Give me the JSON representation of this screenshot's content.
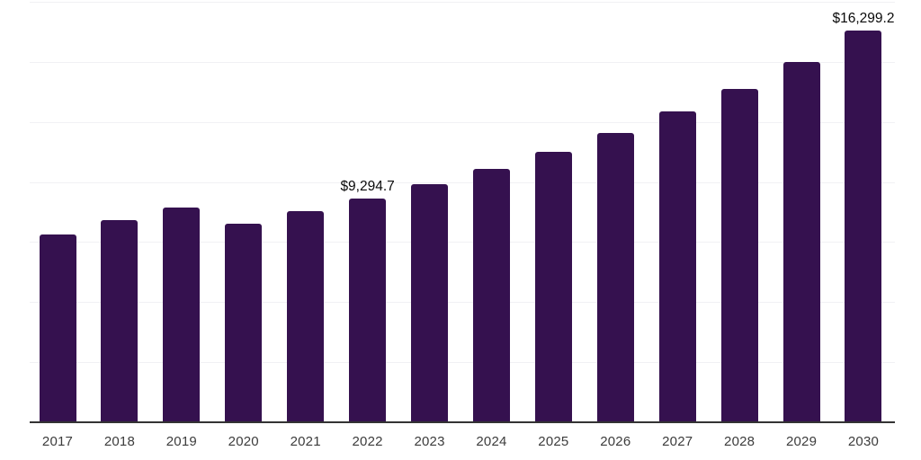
{
  "chart_data": {
    "type": "bar",
    "title": "",
    "xlabel": "",
    "ylabel": "",
    "categories": [
      "2017",
      "2018",
      "2019",
      "2020",
      "2021",
      "2022",
      "2023",
      "2024",
      "2025",
      "2026",
      "2027",
      "2028",
      "2029",
      "2030"
    ],
    "values": [
      7830,
      8420,
      8950,
      8270,
      8790,
      9294.7,
      9910,
      10560,
      11250,
      12030,
      12950,
      13880,
      15010,
      16299.2
    ],
    "ylim": [
      0,
      17500
    ],
    "gridline_step": 2500,
    "grid": true,
    "legend_position": "none",
    "data_labels": [
      {
        "index": 5,
        "text": "$9,294.7"
      },
      {
        "index": 13,
        "text": "$16,299.2"
      }
    ],
    "bar_color": "#35114F",
    "axis_color": "#333333",
    "gridline_color": "#f1f1f4",
    "tick_label_color": "#3c3c3c",
    "data_label_color": "#0a0a0a"
  }
}
